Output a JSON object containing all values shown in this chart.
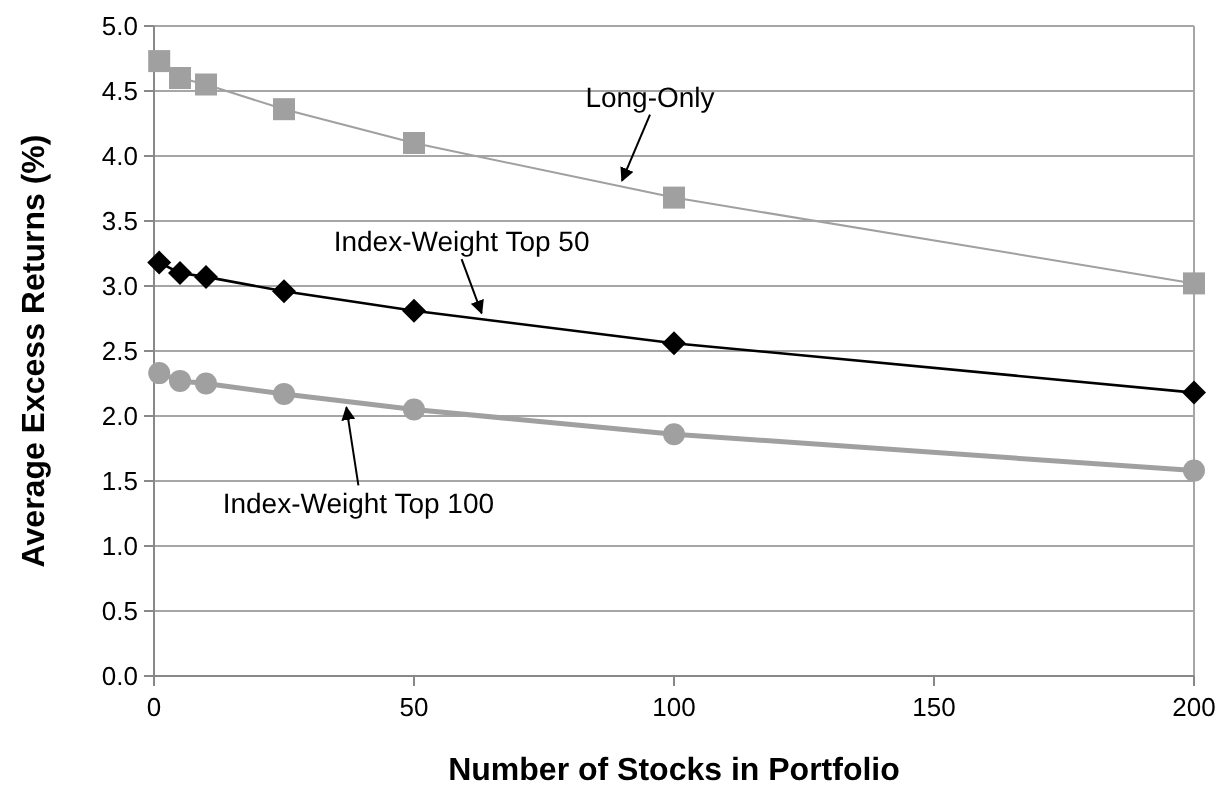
{
  "chart_data": {
    "type": "line",
    "xlabel": "Number of Stocks in Portfolio",
    "ylabel": "Average Excess Returns (%)",
    "x": [
      1,
      5,
      10,
      25,
      50,
      100,
      200
    ],
    "series": [
      {
        "name": "Long-Only",
        "color": "#a0a0a0",
        "marker": "square",
        "values": [
          4.73,
          4.6,
          4.55,
          4.36,
          4.1,
          3.68,
          3.02
        ]
      },
      {
        "name": "Index-Weight Top 50",
        "color": "#000000",
        "marker": "diamond",
        "values": [
          3.18,
          3.1,
          3.07,
          2.96,
          2.81,
          2.56,
          2.18
        ]
      },
      {
        "name": "Index-Weight Top 100",
        "color": "#a0a0a0",
        "marker": "circle",
        "values": [
          2.33,
          2.27,
          2.25,
          2.17,
          2.05,
          1.86,
          1.58
        ]
      }
    ],
    "xlim": [
      0,
      200
    ],
    "xticks": [
      0,
      50,
      100,
      150,
      200
    ],
    "ylim": [
      0,
      5
    ],
    "yticks": [
      {
        "value": 0,
        "label": "0.0"
      },
      {
        "value": 0.5,
        "label": "0.5"
      },
      {
        "value": 1,
        "label": "1.0"
      },
      {
        "value": 1.5,
        "label": "1.5"
      },
      {
        "value": 2,
        "label": "2.0"
      },
      {
        "value": 2.5,
        "label": "2.5"
      },
      {
        "value": 3,
        "label": "3.0"
      },
      {
        "value": 3.5,
        "label": "3.5"
      },
      {
        "value": 4,
        "label": "4.0"
      },
      {
        "value": 4.5,
        "label": "4.5"
      },
      {
        "value": 5,
        "label": "5.0"
      }
    ],
    "grid": "y",
    "line_style": "solid"
  }
}
